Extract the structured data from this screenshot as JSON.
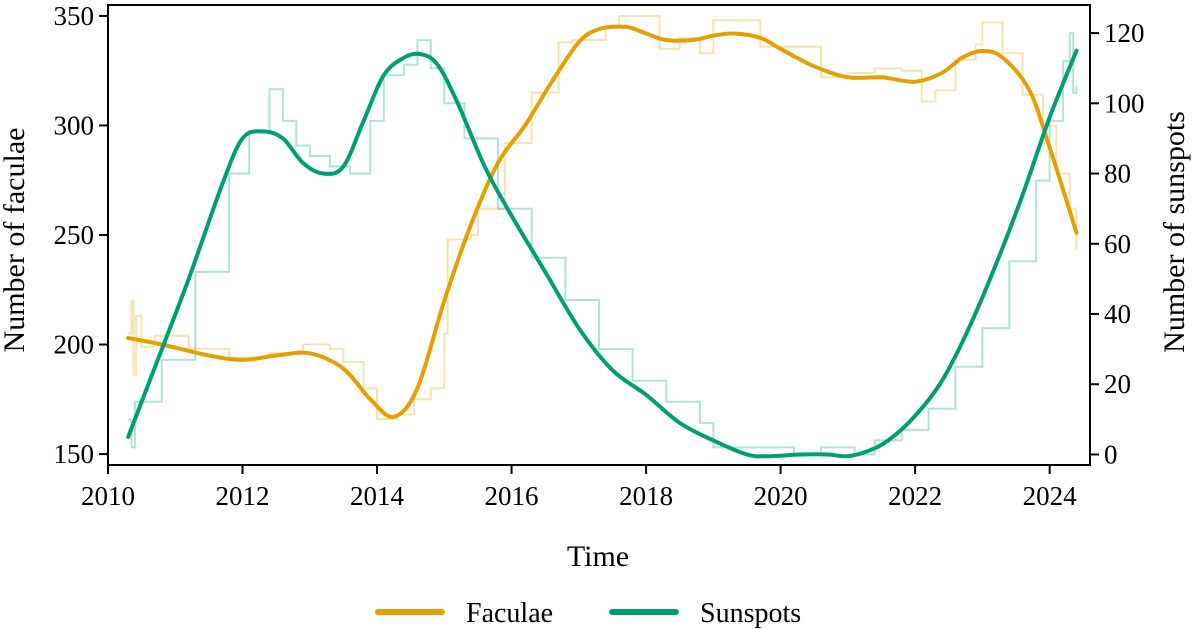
{
  "chart_data": {
    "type": "line",
    "xlabel": "Time",
    "ylabel_left": "Number of faculae",
    "ylabel_right": "Number of sunspots",
    "xlim": [
      2010,
      2024.6
    ],
    "ylim_left": [
      145,
      355
    ],
    "ylim_right": [
      -3,
      128
    ],
    "x_ticks": [
      2010,
      2012,
      2014,
      2016,
      2018,
      2020,
      2022,
      2024
    ],
    "y_ticks_left": [
      150,
      200,
      250,
      300,
      350
    ],
    "y_ticks_right": [
      0,
      20,
      40,
      60,
      80,
      100,
      120
    ],
    "grid": false,
    "legend_position": "bottom-center",
    "series": [
      {
        "name": "Faculae",
        "axis": "left",
        "color": "#E69F00",
        "x": [
          2010.3,
          2010.8,
          2011.5,
          2012.0,
          2012.5,
          2013.0,
          2013.5,
          2013.9,
          2014.25,
          2014.6,
          2015.0,
          2015.4,
          2015.8,
          2016.2,
          2016.6,
          2017.0,
          2017.3,
          2017.7,
          2018.0,
          2018.3,
          2018.7,
          2019.0,
          2019.3,
          2019.7,
          2020.0,
          2020.5,
          2021.0,
          2021.5,
          2022.0,
          2022.4,
          2022.7,
          2023.0,
          2023.3,
          2023.7,
          2024.0,
          2024.4
        ],
        "y": [
          203,
          200,
          195,
          193,
          195,
          196,
          189,
          175,
          167,
          180,
          220,
          255,
          283,
          300,
          320,
          338,
          344,
          345,
          342,
          339,
          339,
          341,
          342,
          340,
          335,
          327,
          322,
          322,
          320,
          324,
          331,
          334,
          331,
          316,
          290,
          251
        ],
        "raw_x": [
          2010.3,
          2010.35,
          2010.38,
          2010.42,
          2010.5,
          2010.7,
          2011.2,
          2011.8,
          2012.4,
          2012.9,
          2013.3,
          2013.5,
          2013.8,
          2014.0,
          2014.3,
          2014.55,
          2014.8,
          2015.0,
          2015.05,
          2015.4,
          2015.5,
          2015.9,
          2016.3,
          2016.7,
          2016.9,
          2017.4,
          2017.6,
          2018.2,
          2018.5,
          2018.8,
          2019.0,
          2019.3,
          2019.7,
          2020.1,
          2020.6,
          2021.0,
          2021.4,
          2021.8,
          2022.1,
          2022.3,
          2022.6,
          2022.9,
          2023.0,
          2023.3,
          2023.6,
          2023.9,
          2024.1,
          2024.3,
          2024.4
        ],
        "raw_y": [
          205,
          220,
          186,
          213,
          199,
          204,
          198,
          194,
          196,
          200,
          198,
          192,
          180,
          166,
          168,
          175,
          180,
          205,
          248,
          250,
          262,
          292,
          315,
          338,
          339,
          345,
          350,
          335,
          340,
          333,
          348,
          348,
          336,
          336,
          322,
          324,
          326,
          325,
          311,
          316,
          330,
          337,
          347,
          333,
          314,
          300,
          278,
          262,
          243
        ]
      },
      {
        "name": "Sunspots",
        "axis": "right",
        "color": "#009E73",
        "x": [
          2010.3,
          2010.7,
          2011.2,
          2011.7,
          2012.0,
          2012.3,
          2012.6,
          2012.9,
          2013.2,
          2013.5,
          2013.8,
          2014.1,
          2014.4,
          2014.65,
          2014.9,
          2015.2,
          2015.6,
          2016.0,
          2016.5,
          2017.0,
          2017.5,
          2018.0,
          2018.5,
          2019.0,
          2019.5,
          2019.8,
          2020.3,
          2020.7,
          2021.0,
          2021.3,
          2021.6,
          2022.0,
          2022.4,
          2022.8,
          2023.2,
          2023.6,
          2024.0,
          2024.4
        ],
        "y": [
          5,
          25,
          50,
          77,
          90,
          92,
          90,
          83,
          80,
          82,
          95,
          108,
          113,
          114,
          111,
          100,
          82,
          68,
          52,
          36,
          24,
          17,
          9,
          4,
          0,
          -0.5,
          0,
          0,
          -0.5,
          1,
          4,
          11,
          21,
          36,
          54,
          74,
          96,
          115
        ],
        "raw_x": [
          2010.3,
          2010.35,
          2010.4,
          2010.8,
          2011.3,
          2011.8,
          2012.1,
          2012.4,
          2012.6,
          2012.8,
          2013.0,
          2013.3,
          2013.6,
          2013.9,
          2014.1,
          2014.4,
          2014.6,
          2014.8,
          2015.0,
          2015.3,
          2015.8,
          2016.3,
          2016.8,
          2017.3,
          2017.8,
          2018.3,
          2018.8,
          2019.0,
          2019.3,
          2019.7,
          2020.2,
          2020.6,
          2021.1,
          2021.4,
          2021.8,
          2022.2,
          2022.6,
          2023.0,
          2023.4,
          2023.8,
          2024.0,
          2024.2,
          2024.3,
          2024.35,
          2024.4
        ],
        "raw_y": [
          10,
          2,
          15,
          27,
          52,
          80,
          92,
          104,
          95,
          88,
          85,
          82,
          80,
          95,
          108,
          111,
          118,
          110,
          100,
          90,
          70,
          56,
          44,
          30,
          21,
          15,
          9,
          2,
          2,
          2,
          0,
          2,
          0,
          4,
          7,
          13,
          25,
          36,
          55,
          78,
          95,
          112,
          120,
          103,
          105
        ]
      }
    ]
  }
}
